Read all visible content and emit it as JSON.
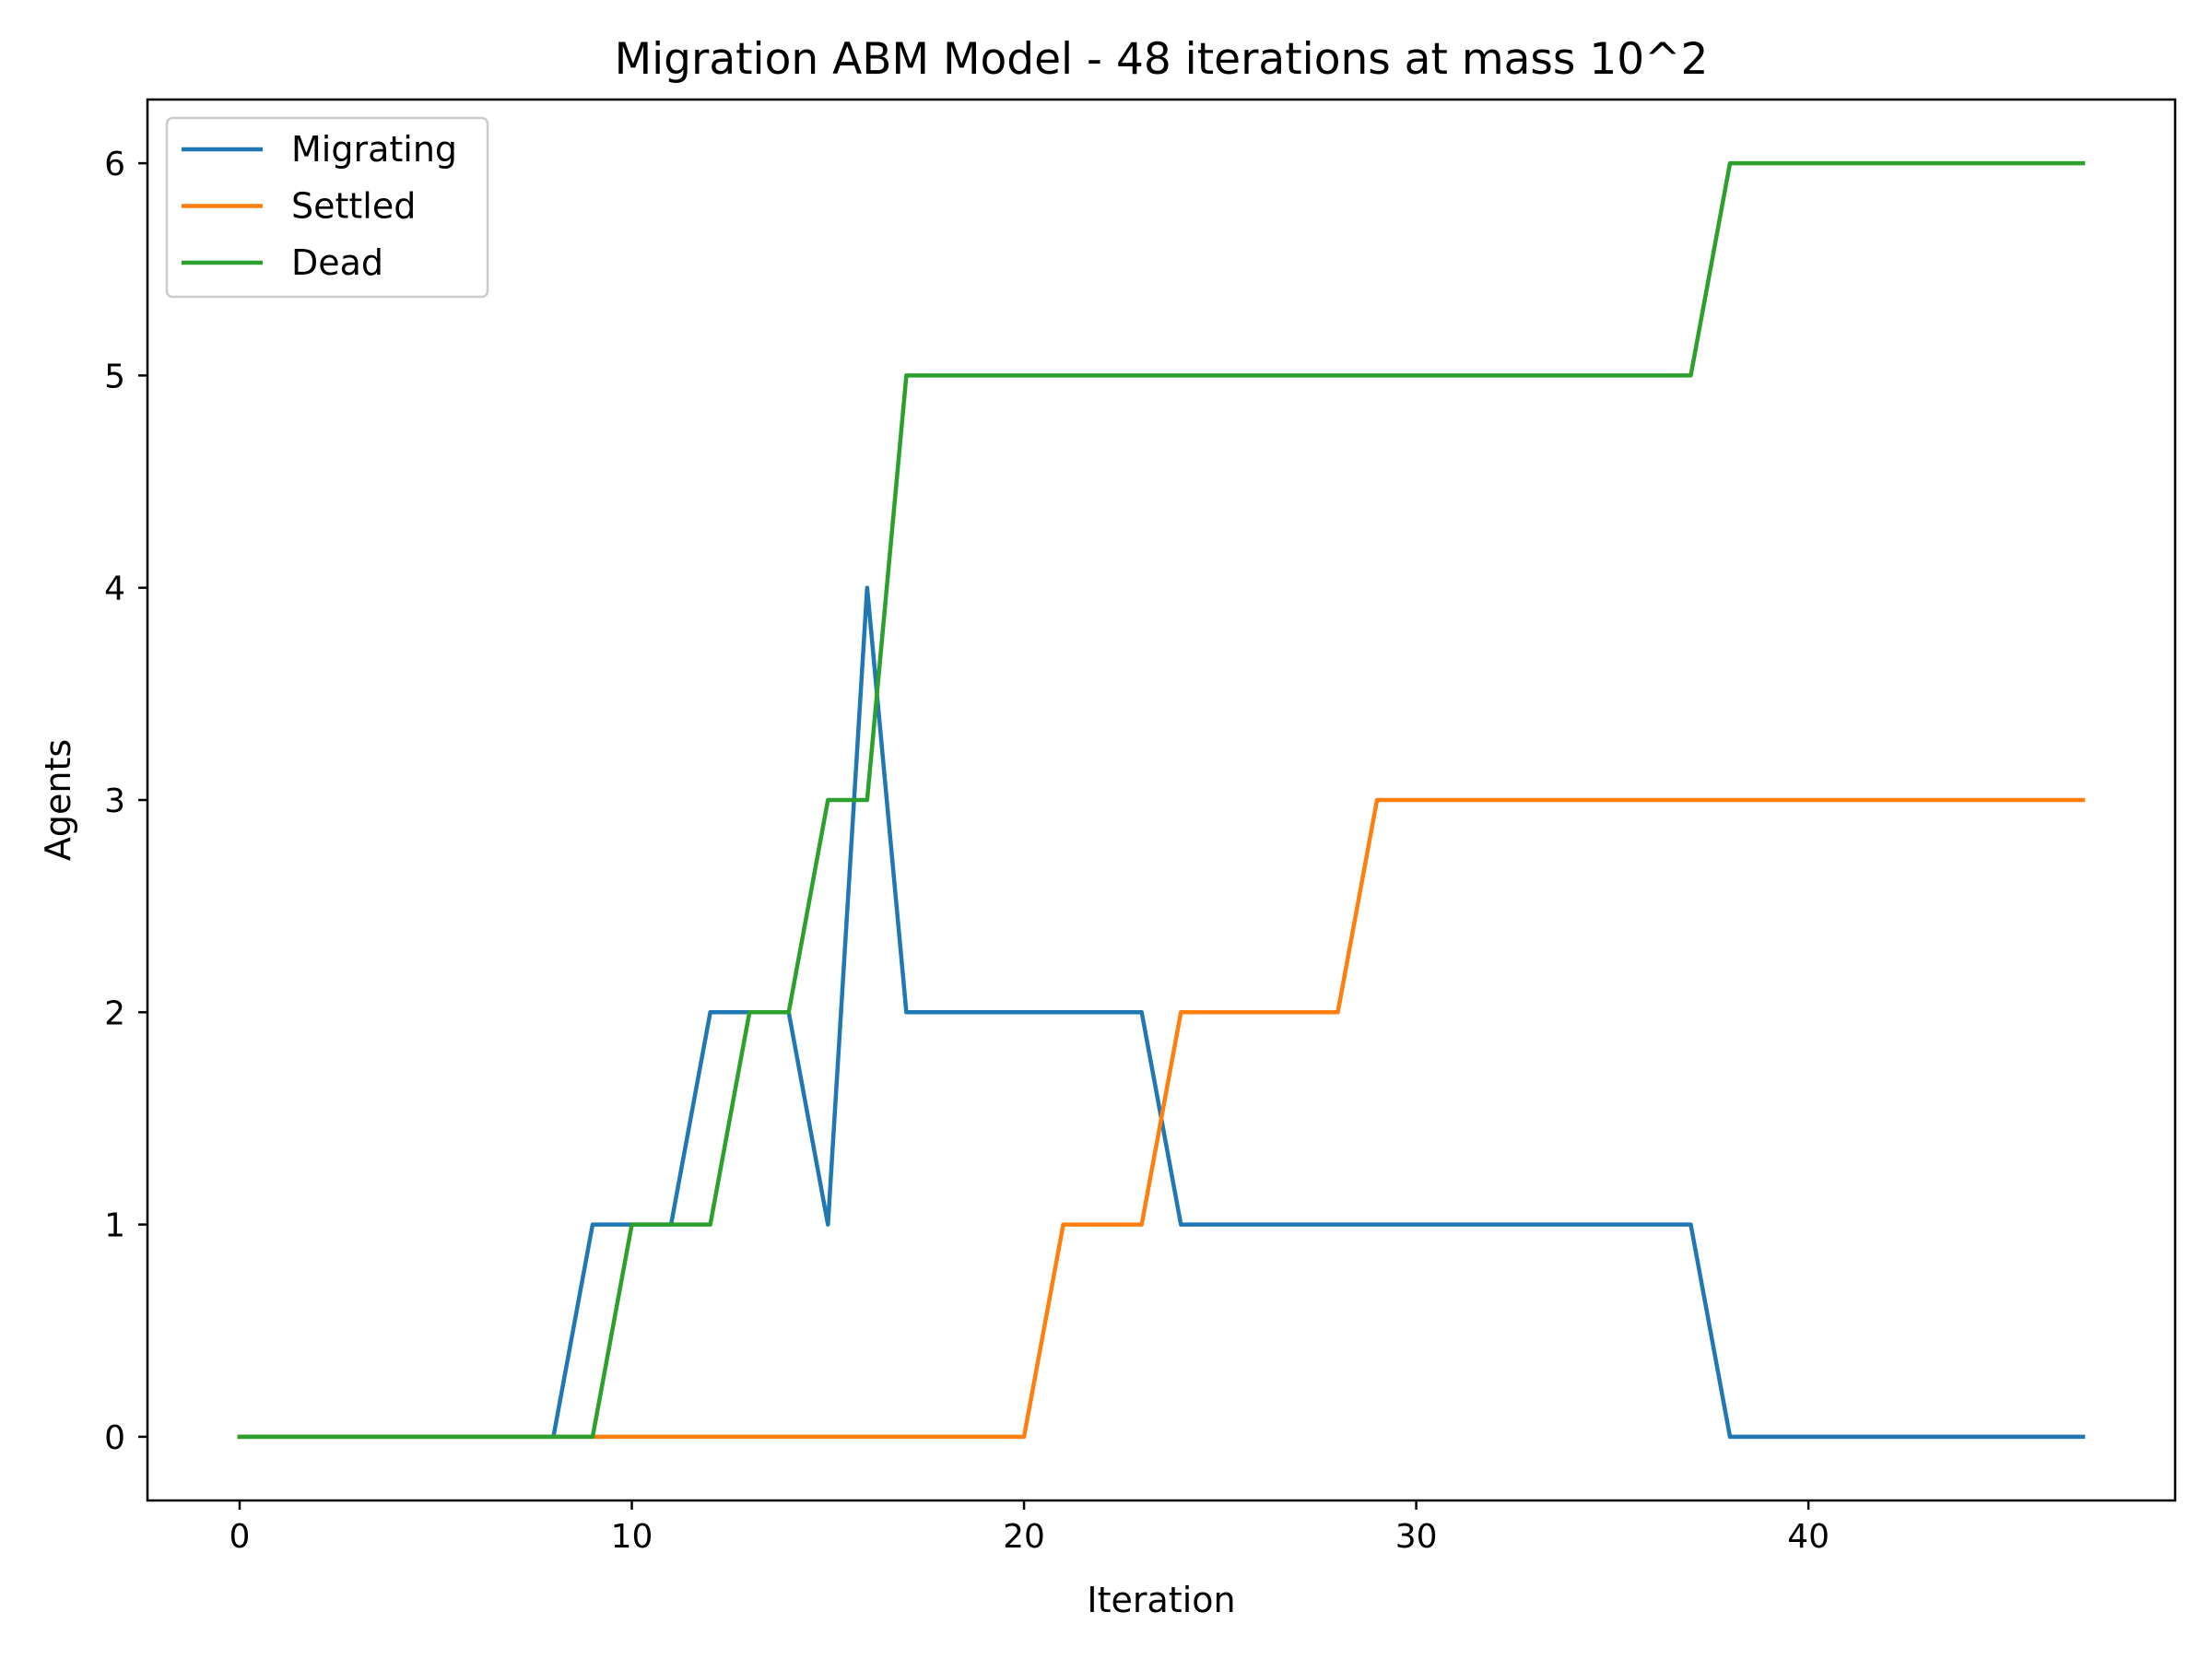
{
  "chart_data": {
    "type": "line",
    "title": "Migration ABM Model - 48 iterations at mass 10^2",
    "xlabel": "Iteration",
    "ylabel": "Agents",
    "xlim": [
      -2.35,
      49.35
    ],
    "ylim": [
      -0.3,
      6.3
    ],
    "xticks": [
      0,
      10,
      20,
      30,
      40
    ],
    "yticks": [
      0,
      1,
      2,
      3,
      4,
      5,
      6
    ],
    "x": [
      0,
      1,
      2,
      3,
      4,
      5,
      6,
      7,
      8,
      9,
      10,
      11,
      12,
      13,
      14,
      15,
      16,
      17,
      18,
      19,
      20,
      21,
      22,
      23,
      24,
      25,
      26,
      27,
      28,
      29,
      30,
      31,
      32,
      33,
      34,
      35,
      36,
      37,
      38,
      39,
      40,
      41,
      42,
      43,
      44,
      45,
      46,
      47
    ],
    "legend_position": "top-left",
    "grid": false,
    "series": [
      {
        "name": "Migrating",
        "color": "#1f77b4",
        "values": [
          0,
          0,
          0,
          0,
          0,
          0,
          0,
          0,
          0,
          1,
          1,
          1,
          2,
          2,
          2,
          1,
          4,
          2,
          2,
          2,
          2,
          2,
          2,
          2,
          1,
          1,
          1,
          1,
          1,
          1,
          1,
          1,
          1,
          1,
          1,
          1,
          1,
          1,
          0,
          0,
          0,
          0,
          0,
          0,
          0,
          0,
          0,
          0
        ]
      },
      {
        "name": "Settled",
        "color": "#ff7f0e",
        "values": [
          0,
          0,
          0,
          0,
          0,
          0,
          0,
          0,
          0,
          0,
          0,
          0,
          0,
          0,
          0,
          0,
          0,
          0,
          0,
          0,
          0,
          1,
          1,
          1,
          2,
          2,
          2,
          2,
          2,
          3,
          3,
          3,
          3,
          3,
          3,
          3,
          3,
          3,
          3,
          3,
          3,
          3,
          3,
          3,
          3,
          3,
          3,
          3
        ]
      },
      {
        "name": "Dead",
        "color": "#2ca02c",
        "values": [
          0,
          0,
          0,
          0,
          0,
          0,
          0,
          0,
          0,
          0,
          1,
          1,
          1,
          2,
          2,
          3,
          3,
          5,
          5,
          5,
          5,
          5,
          5,
          5,
          5,
          5,
          5,
          5,
          5,
          5,
          5,
          5,
          5,
          5,
          5,
          5,
          5,
          5,
          6,
          6,
          6,
          6,
          6,
          6,
          6,
          6,
          6,
          6
        ]
      }
    ]
  }
}
